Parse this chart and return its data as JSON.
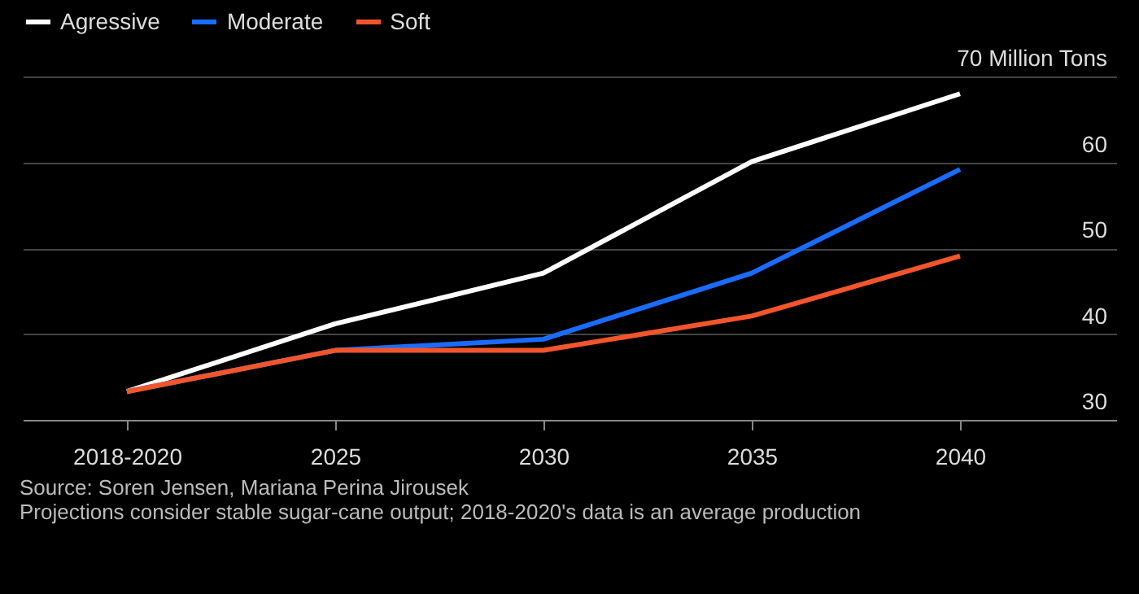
{
  "chart_data": {
    "type": "line",
    "categories": [
      "2018-2020",
      "2025",
      "2030",
      "2035",
      "2040"
    ],
    "series": [
      {
        "name": "Agressive",
        "color": "#ffffff",
        "values": [
          33.3,
          41.2,
          47.1,
          60.1,
          68.0
        ]
      },
      {
        "name": "Moderate",
        "color": "#1a6cff",
        "values": [
          33.3,
          38.1,
          39.4,
          47.1,
          59.2
        ]
      },
      {
        "name": "Soft",
        "color": "#f2552c",
        "values": [
          33.3,
          38.1,
          38.1,
          42.1,
          49.1
        ]
      }
    ],
    "ylim": [
      30,
      74
    ],
    "yticks": [
      30,
      40,
      50,
      60,
      {
        "value": 70,
        "label": "70 Million Tons"
      }
    ],
    "grid": "y",
    "legend": "top left",
    "marker": "none",
    "line_style": "solid",
    "annotations": [
      "Source: Soren Jensen, Mariana Perina Jirousek",
      "Projections consider stable sugar-cane output; 2018-2020's data is an average production"
    ]
  }
}
